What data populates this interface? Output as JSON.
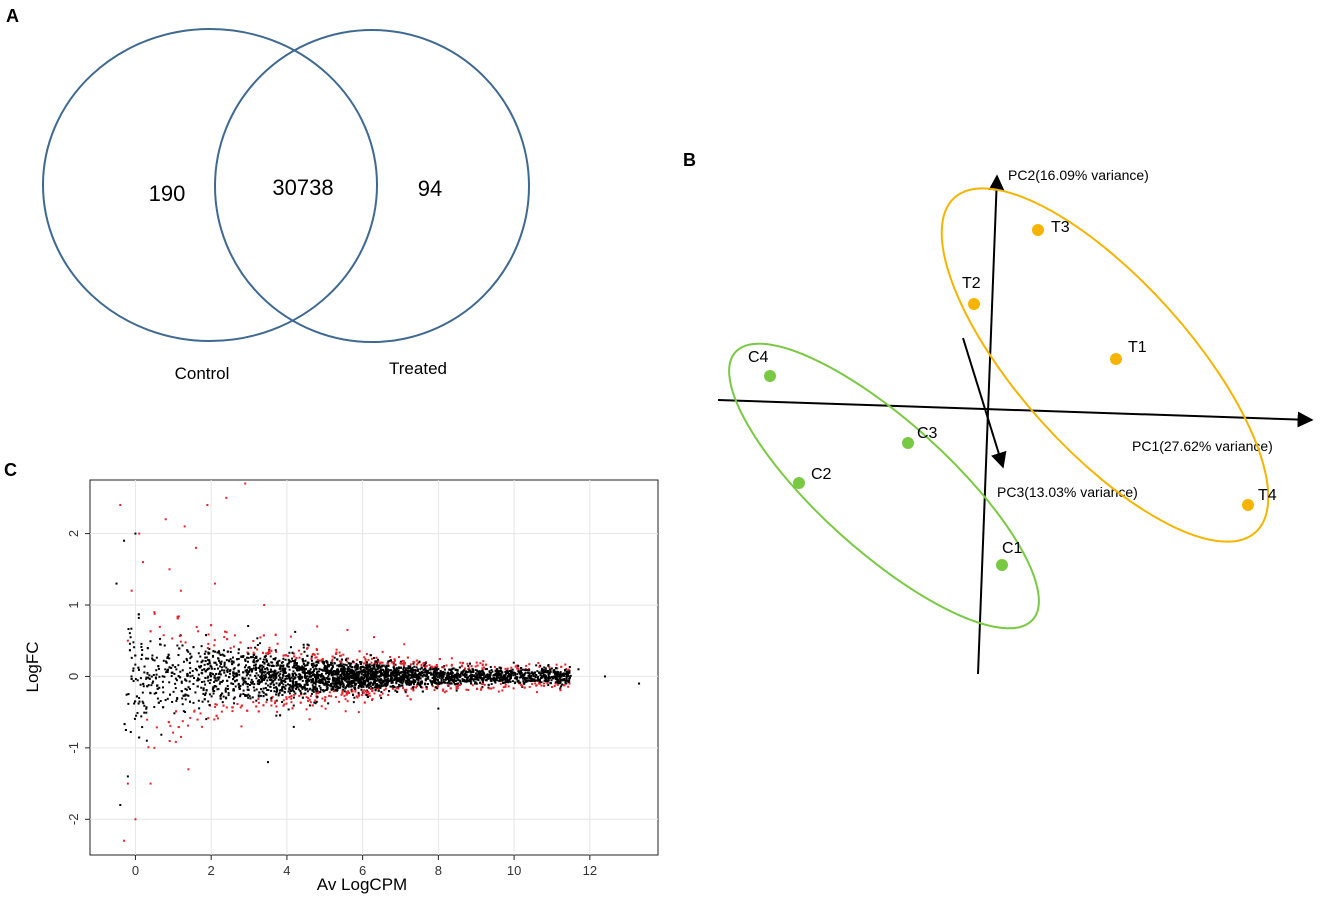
{
  "panels": {
    "a": "A",
    "b": "B",
    "c": "C"
  },
  "colors": {
    "venn_circle": "#3f6990",
    "control_green": "#7ac943",
    "treated_orange": "#f5b400",
    "significant_red": "#e8212a",
    "nonsignificant_black": "#000000"
  },
  "chart_data": [
    {
      "type": "venn",
      "sets": [
        {
          "name": "Control",
          "only": 190
        },
        {
          "name": "Treated",
          "only": 94
        }
      ],
      "overlap": 30738,
      "labels": {
        "only_control": "190",
        "overlap": "30738",
        "only_treated": "94"
      }
    },
    {
      "type": "scatter",
      "subtype": "pca-biplot-3d",
      "axes": {
        "pc1": "PC1(27.62% variance)",
        "pc2": "PC2(16.09% variance)",
        "pc3": "PC3(13.03% variance)"
      },
      "groups": [
        {
          "name": "Control",
          "color": "#7ac943",
          "points": [
            "C1",
            "C2",
            "C3",
            "C4"
          ]
        },
        {
          "name": "Treated",
          "color": "#f5b400",
          "points": [
            "T1",
            "T2",
            "T3",
            "T4"
          ]
        }
      ]
    },
    {
      "type": "scatter",
      "subtype": "ma-plot",
      "xlabel": "Av LogCPM",
      "ylabel": "LogFC",
      "xlim": [
        -1.2,
        13.8
      ],
      "ylim": [
        -2.5,
        2.75
      ],
      "xticks": [
        0,
        2,
        4,
        6,
        8,
        10,
        12
      ],
      "yticks": [
        -2,
        -1,
        0,
        1,
        2
      ],
      "xtick_labels": [
        "0",
        "2",
        "4",
        "6",
        "8",
        "10",
        "12"
      ],
      "ytick_labels": [
        "-2",
        "-1",
        "0",
        "1",
        "2"
      ],
      "grid": true,
      "series": [
        {
          "color": "#e8212a",
          "points": [
            [
              -0.4,
              2.4
            ],
            [
              2.9,
              2.7
            ],
            [
              2.4,
              2.5
            ],
            [
              1.9,
              2.4
            ],
            [
              0.8,
              2.2
            ],
            [
              0.1,
              2.0
            ],
            [
              1.3,
              2.1
            ],
            [
              1.6,
              1.8
            ],
            [
              3.4,
              1.0
            ],
            [
              0.2,
              1.6
            ],
            [
              0.9,
              1.5
            ],
            [
              -0.1,
              1.2
            ],
            [
              1.2,
              1.2
            ],
            [
              2.1,
              1.3
            ],
            [
              0.5,
              0.9
            ],
            [
              -0.2,
              0.5
            ],
            [
              4.8,
              0.7
            ],
            [
              5.6,
              0.65
            ],
            [
              6.3,
              0.55
            ],
            [
              7.1,
              0.45
            ],
            [
              -0.2,
              -1.5
            ],
            [
              0.4,
              -1.5
            ],
            [
              0.5,
              -1.0
            ],
            [
              1.4,
              -1.3
            ],
            [
              0.0,
              -2.0
            ],
            [
              -0.3,
              -2.3
            ],
            [
              2.8,
              -0.7
            ],
            [
              4.6,
              -0.6
            ],
            [
              5.9,
              -0.5
            ]
          ]
        },
        {
          "color": "#000000",
          "points": [
            [
              0.0,
              2.0
            ],
            [
              -0.3,
              1.9
            ],
            [
              -0.5,
              1.3
            ],
            [
              0.3,
              -0.9
            ],
            [
              -0.2,
              -1.4
            ],
            [
              -0.4,
              -1.8
            ],
            [
              3.5,
              -1.2
            ],
            [
              8.0,
              -0.45
            ],
            [
              11.7,
              0.1
            ],
            [
              12.4,
              0.0
            ],
            [
              13.3,
              -0.1
            ],
            [
              10.9,
              0.15
            ]
          ]
        }
      ]
    }
  ]
}
